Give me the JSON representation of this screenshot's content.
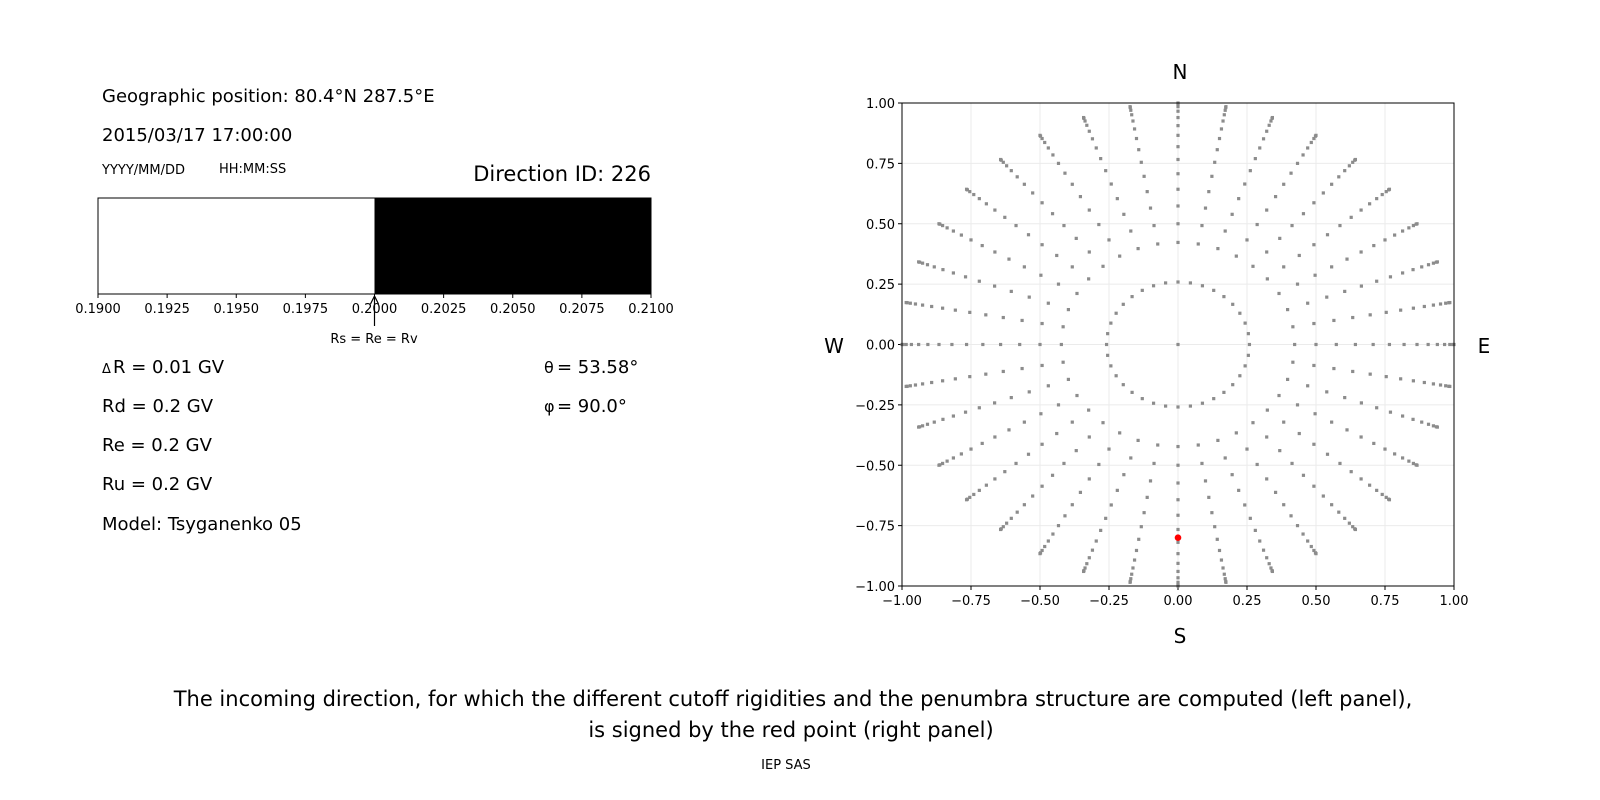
{
  "left_panel": {
    "position": "Geographic position: 80.4°N 287.5°E",
    "datetime": "2015/03/17 17:00:00",
    "date_format": "YYYY/MM/DD",
    "time_format": "HH:MM:SS",
    "direction_id": "Direction ID: 226",
    "arrow_label": "Rs = Re = Rv",
    "params": {
      "delta_symbol": "Δ",
      "delta_r": "R = 0.01 GV",
      "rd": "Rd = 0.2 GV",
      "re": "Re = 0.2 GV",
      "ru": "Ru = 0.2 GV",
      "model": "Model: Tsyganenko 05",
      "theta_symbol": "θ",
      "theta": " = 53.58°",
      "phi_symbol": "φ",
      "phi": " = 90.0°"
    }
  },
  "chart_data": [
    {
      "type": "bar",
      "description_role": "penumbra",
      "xlim": [
        0.19,
        0.21
      ],
      "xticks": [
        "0.1900",
        "0.1925",
        "0.1950",
        "0.1975",
        "0.2000",
        "0.2025",
        "0.2050",
        "0.2075",
        "0.2100"
      ],
      "segments": [
        {
          "from": 0.19,
          "to": 0.2,
          "color": "#ffffff"
        },
        {
          "from": 0.2,
          "to": 0.21,
          "color": "#000000"
        }
      ],
      "arrow_at": 0.2
    },
    {
      "type": "scatter",
      "xlim": [
        -1,
        1
      ],
      "ylim": [
        -1,
        1
      ],
      "xticks": [
        "−1.00",
        "−0.75",
        "−0.50",
        "−0.25",
        "0.00",
        "0.25",
        "0.50",
        "0.75",
        "1.00"
      ],
      "yticks": [
        "−1.00",
        "−0.75",
        "−0.50",
        "−0.25",
        "0.00",
        "0.25",
        "0.50",
        "0.75",
        "1.00"
      ],
      "grid": true,
      "compass": {
        "n": "N",
        "s": "S",
        "w": "W",
        "e": "E"
      },
      "point_color": "#8c8c8c",
      "grid_directions": {
        "center": [
          0,
          0
        ],
        "inner_ring_zenith_deg": 15,
        "inner_ring_azimuth_step_deg": 10,
        "spoke_azimuth_step_deg": 10,
        "spoke_zenith_deg": [
          25,
          30,
          35,
          40,
          45,
          50,
          55,
          60,
          65,
          70,
          75,
          80,
          85,
          90
        ],
        "projection": "x = sin(zenith)·sin(azimuth), y = sin(zenith)·cos(azimuth)"
      },
      "highlight": {
        "x": 0.0,
        "y": -0.8,
        "color": "#ff0000"
      }
    }
  ],
  "caption": {
    "line1": "The incoming direction, for which the different cutoff rigidities and the penumbra structure are computed (left panel),",
    "line2": "is signed by the red point (right panel)",
    "credit": "IEP SAS"
  }
}
